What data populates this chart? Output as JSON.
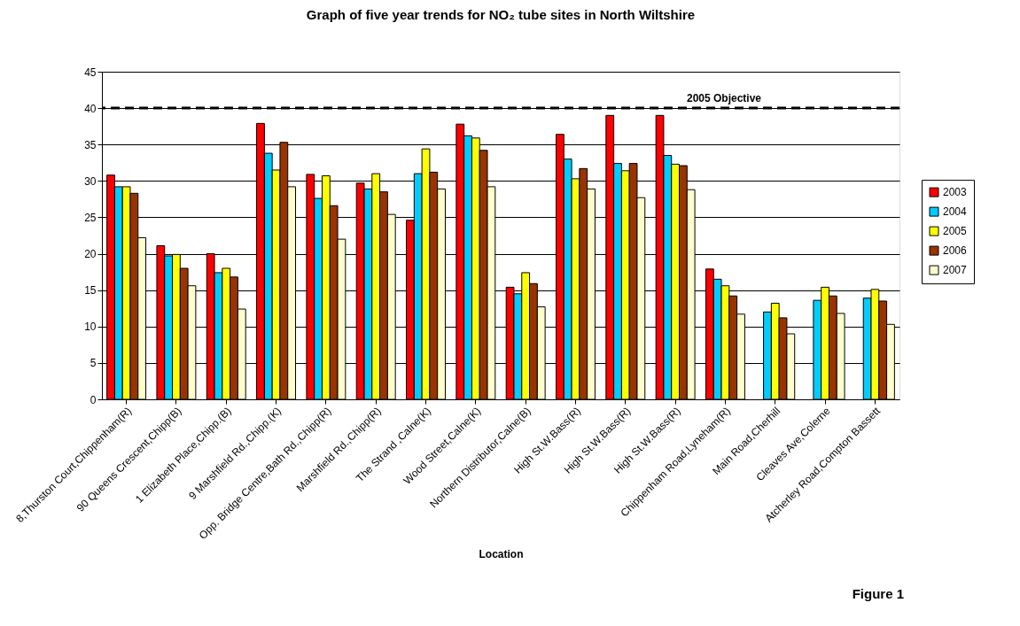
{
  "chart_data": {
    "type": "bar",
    "title": "Graph of five year trends for NO₂ tube sites in North Wiltshire",
    "xlabel": "Location",
    "categories": [
      "8,Thurston Court,Chippenham(R)",
      "90 Queens Crescent,Chipp(B)",
      "1 Elizabeth Place,Chipp.(B)",
      "9 Marshfield Rd.,Chipp.(K)",
      "Opp. Bridge Centre,Bath Rd.,Chipp(R)",
      "Marshfield Rd.,Chipp(R)",
      "The Strand ,Calne(K)",
      "Wood Street,Calne(K)",
      "Northern Distributor,Calne(B)",
      "High St.W.Bass(R)",
      "High St.W.Bass(R)",
      "High St.W.Bass(R)",
      "Chippenham Road,Lyneham(R)",
      "Main Road,Cherhill",
      "Cleaves Ave,Colerne",
      "Atcherley Road,Compton Bassett"
    ],
    "series": [
      {
        "name": "2003",
        "color": "#ff0000",
        "values": [
          30.8,
          21.1,
          20.0,
          37.9,
          30.9,
          29.7,
          24.6,
          37.8,
          15.4,
          36.4,
          39.0,
          39.0,
          17.9,
          null,
          null,
          null
        ]
      },
      {
        "name": "2004",
        "color": "#00ccff",
        "values": [
          29.2,
          19.7,
          17.4,
          33.8,
          27.6,
          28.9,
          31.0,
          36.2,
          14.5,
          33.0,
          32.4,
          33.5,
          16.5,
          12.0,
          13.6,
          13.9
        ]
      },
      {
        "name": "2005",
        "color": "#ffff00",
        "values": [
          29.2,
          19.9,
          18.0,
          31.5,
          30.7,
          31.0,
          34.4,
          35.9,
          17.4,
          30.3,
          31.4,
          32.3,
          15.6,
          13.2,
          15.4,
          15.1
        ]
      },
      {
        "name": "2006",
        "color": "#993300",
        "values": [
          28.3,
          18.0,
          16.8,
          35.3,
          26.6,
          28.5,
          31.2,
          34.2,
          15.9,
          31.7,
          32.4,
          32.1,
          14.2,
          11.2,
          14.2,
          13.5
        ]
      },
      {
        "name": "2007",
        "color": "#ffffcc",
        "values": [
          22.2,
          15.6,
          12.4,
          29.2,
          22.0,
          25.4,
          28.9,
          29.2,
          12.7,
          28.9,
          27.7,
          28.8,
          11.7,
          9.0,
          11.8,
          10.3
        ]
      }
    ],
    "ylim": [
      0,
      45
    ],
    "yticks": [
      0,
      5,
      10,
      15,
      20,
      25,
      30,
      35,
      40,
      45
    ],
    "grid": "y",
    "legend": "right",
    "ref_lines": [
      {
        "axis": "y",
        "value": 40,
        "label": "2005 Objective",
        "color": "#000000",
        "line_style": "dashed"
      }
    ],
    "annotations": [
      "Figure 1"
    ]
  }
}
